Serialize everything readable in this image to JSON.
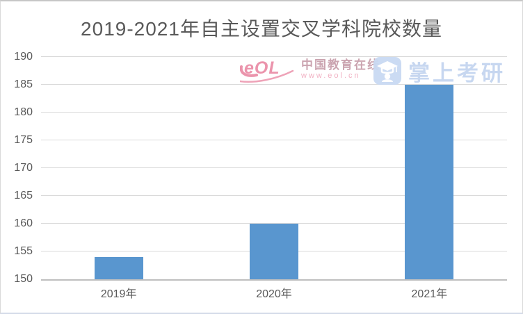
{
  "chart_data": {
    "type": "bar",
    "title": "2019-2021年自主设置交叉学科院校数量",
    "categories": [
      "2019年",
      "2020年",
      "2021年"
    ],
    "values": [
      154,
      160,
      185
    ],
    "xlabel": "",
    "ylabel": "",
    "ylim": [
      150,
      190
    ],
    "ytick_step": 5,
    "grid": true,
    "legend": "none"
  },
  "watermarks": {
    "eol": {
      "logo_text": "eOL",
      "name": "中国教育在线",
      "url": "www.eol.cn"
    },
    "kaoyan": {
      "icon": "graduation-cap-icon",
      "label": "掌上考研"
    }
  },
  "colors": {
    "bar": "#5996cf",
    "title_text": "#595959",
    "axis_text": "#595959",
    "gridline": "#d9d9d9",
    "axis_line": "#bfbfbf",
    "eol_pink": "#e8829e",
    "kaoyan_blue": "#c5d5f0",
    "background": "#ffffff"
  }
}
